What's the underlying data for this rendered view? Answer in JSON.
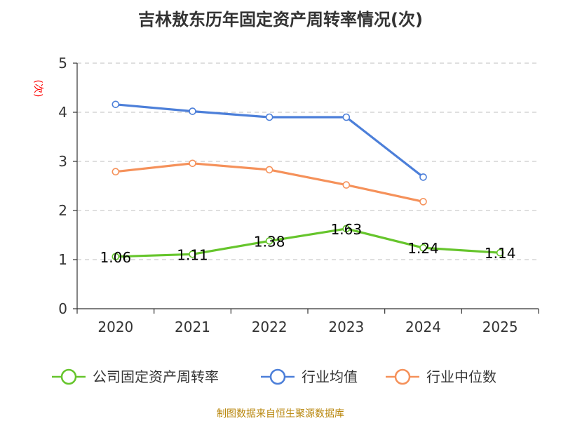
{
  "title": "吉林敖东历年固定资产周转率情况(次)",
  "source_note": "制图数据来自恒生聚源数据库",
  "colors": {
    "company": "#66c52c",
    "industry_avg": "#4c7fd9",
    "industry_median": "#f5915a",
    "grid": "#cccccc",
    "axis": "#333333"
  },
  "chart_data": {
    "type": "line",
    "title": "吉林敖东历年固定资产周转率情况(次)",
    "xlabel": "",
    "ylabel": "(次)",
    "categories": [
      "2020",
      "2021",
      "2022",
      "2023",
      "2024",
      "2025"
    ],
    "ylim": [
      0,
      5
    ],
    "yticks": [
      0,
      1,
      2,
      3,
      4,
      5
    ],
    "grid": true,
    "legend_position": "bottom",
    "series": [
      {
        "name": "公司固定资产周转率",
        "color": "#66c52c",
        "values": [
          1.06,
          1.11,
          1.38,
          1.63,
          1.24,
          1.14
        ],
        "labels": [
          "1.06",
          "1.11",
          "1.38",
          "1.63",
          "1.24",
          "1.14"
        ]
      },
      {
        "name": "行业均值",
        "color": "#4c7fd9",
        "values": [
          4.16,
          4.02,
          3.9,
          3.9,
          2.68,
          null
        ]
      },
      {
        "name": "行业中位数",
        "color": "#f5915a",
        "values": [
          2.79,
          2.96,
          2.83,
          2.52,
          2.18,
          null
        ]
      }
    ]
  }
}
